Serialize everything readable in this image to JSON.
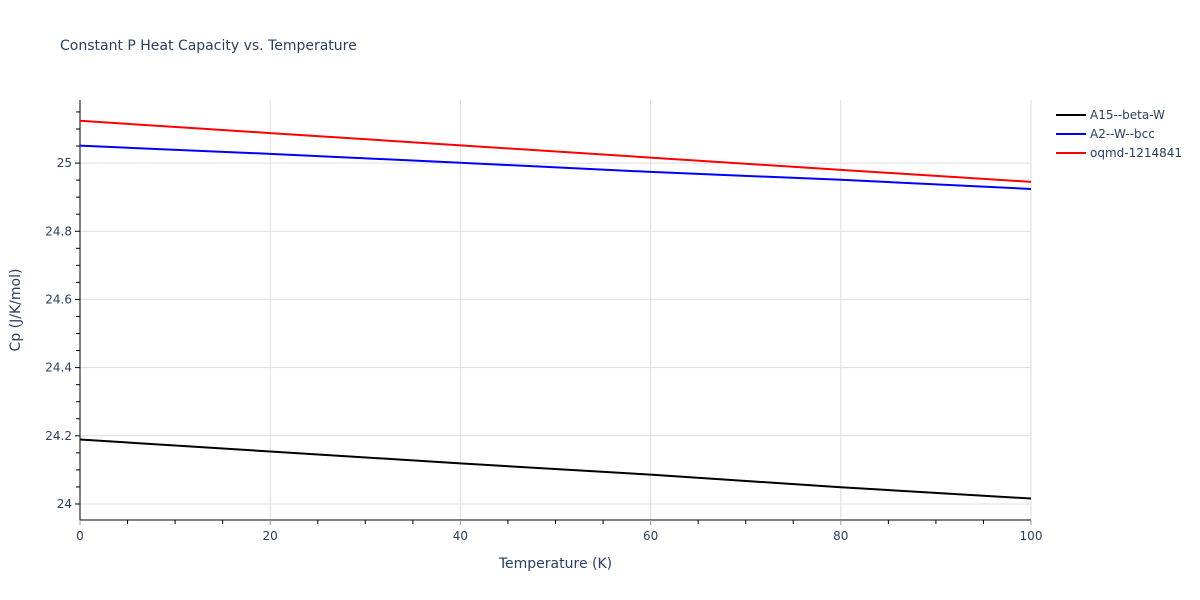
{
  "chart_data": {
    "type": "line",
    "title": "Constant P Heat Capacity vs. Temperature",
    "xlabel": "Temperature (K)",
    "ylabel": "Cp (J/K/mol)",
    "xlim": [
      0,
      100
    ],
    "ylim": [
      23.953,
      25.185
    ],
    "xticks": [
      0,
      20,
      40,
      60,
      80,
      100
    ],
    "xtick_labels": [
      "0",
      "20",
      "40",
      "60",
      "80",
      "100"
    ],
    "yticks": [
      24,
      24.2,
      24.4,
      24.6,
      24.8,
      25
    ],
    "ytick_labels": [
      "24",
      "24.2",
      "24.4",
      "24.6",
      "24.8",
      "25"
    ],
    "grid": true,
    "legend_position": "right-top",
    "x": [
      0,
      20,
      40,
      60,
      80,
      100
    ],
    "series": [
      {
        "name": "A15--beta-W",
        "color": "#000000",
        "values": [
          24.189,
          24.154,
          24.119,
          24.086,
          24.049,
          24.016
        ]
      },
      {
        "name": "A2--W--bcc",
        "color": "#0000ff",
        "values": [
          25.051,
          25.027,
          25.001,
          24.974,
          24.951,
          24.924
        ]
      },
      {
        "name": "oqmd-1214841",
        "color": "#ff0000",
        "values": [
          25.124,
          25.088,
          25.052,
          25.016,
          24.98,
          24.945
        ]
      }
    ]
  },
  "legend": {
    "items": [
      {
        "label": "A15--beta-W",
        "color": "#000000"
      },
      {
        "label": "A2--W--bcc",
        "color": "#0000ff"
      },
      {
        "label": "oqmd-1214841",
        "color": "#ff0000"
      }
    ]
  }
}
